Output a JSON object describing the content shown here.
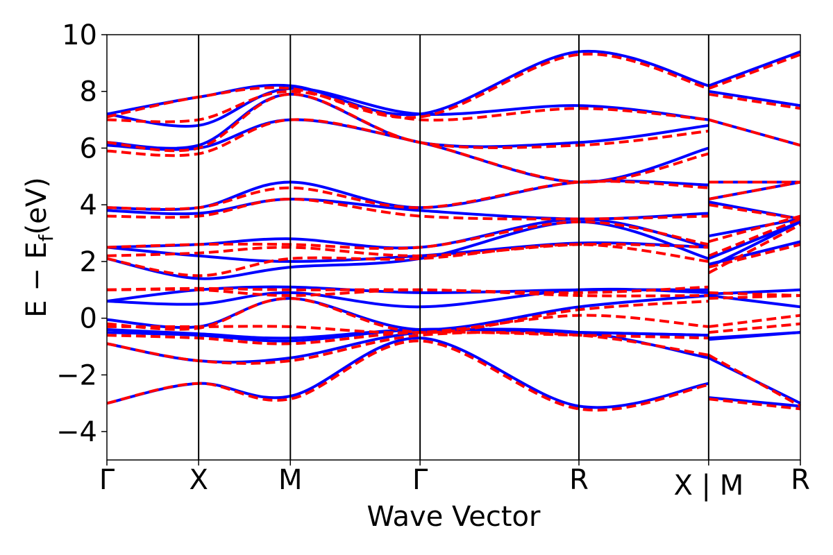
{
  "chart_data": {
    "type": "line",
    "title": "",
    "xlabel": "Wave Vector",
    "ylabel": "E − E",
    "ylabel_subscript": "f",
    "ylabel_unit": "(eV)",
    "ylim": [
      -5,
      10
    ],
    "yticks": [
      {
        "value": 10,
        "label": "10"
      },
      {
        "value": 8,
        "label": "8"
      },
      {
        "value": 6,
        "label": "6"
      },
      {
        "value": 4,
        "label": "4"
      },
      {
        "value": 2,
        "label": "2"
      },
      {
        "value": 0,
        "label": "0"
      },
      {
        "value": -2,
        "label": "−2"
      },
      {
        "value": -4,
        "label": "−4"
      }
    ],
    "kpoints": [
      {
        "label": "Γ",
        "x": 0
      },
      {
        "label": "X",
        "x": 1
      },
      {
        "label": "M",
        "x": 2
      },
      {
        "label": "Γ",
        "x": 3.414
      },
      {
        "label": "R",
        "x": 5.146
      },
      {
        "label": "X | M",
        "x": 6.56
      },
      {
        "label": "R",
        "x": 7.56
      }
    ],
    "grid": false,
    "legend": "none",
    "series": [
      {
        "style": "solid",
        "color": "#0000ff",
        "bands": [
          [
            [
              0,
              -3.0
            ],
            [
              1,
              -2.3
            ],
            [
              2,
              -2.75
            ],
            [
              3.414,
              -0.7
            ],
            [
              5.146,
              -3.1
            ],
            [
              6.56,
              -2.3
            ],
            [
              6.56,
              -2.8
            ],
            [
              7.56,
              -3.1
            ]
          ],
          [
            [
              0,
              -0.9
            ],
            [
              1,
              -1.5
            ],
            [
              2,
              -1.4
            ],
            [
              3.414,
              -0.5
            ],
            [
              5.146,
              -0.5
            ],
            [
              6.56,
              -1.4
            ],
            [
              6.56,
              -1.4
            ],
            [
              7.56,
              -3.0
            ]
          ],
          [
            [
              0,
              -0.5
            ],
            [
              1,
              -0.6
            ],
            [
              2,
              -0.8
            ],
            [
              3.414,
              -0.4
            ],
            [
              5.146,
              -0.5
            ],
            [
              6.56,
              -0.6
            ],
            [
              6.56,
              -0.7
            ],
            [
              7.56,
              -0.5
            ]
          ],
          [
            [
              0,
              -0.4
            ],
            [
              1,
              -0.55
            ],
            [
              2,
              -0.7
            ],
            [
              3.414,
              -0.4
            ],
            [
              5.146,
              -0.5
            ],
            [
              6.56,
              -0.6
            ],
            [
              6.56,
              -0.75
            ],
            [
              7.56,
              -0.5
            ]
          ],
          [
            [
              0,
              -0.05
            ],
            [
              1,
              -0.3
            ],
            [
              2,
              0.7
            ],
            [
              3.414,
              -0.4
            ],
            [
              5.146,
              0.4
            ],
            [
              6.56,
              0.8
            ],
            [
              6.56,
              0.8
            ],
            [
              7.56,
              0.4
            ]
          ],
          [
            [
              0,
              0.6
            ],
            [
              1,
              0.5
            ],
            [
              2,
              0.9
            ],
            [
              3.414,
              0.4
            ],
            [
              5.146,
              1.0
            ],
            [
              6.56,
              0.9
            ],
            [
              6.56,
              0.85
            ],
            [
              7.56,
              1.0
            ]
          ],
          [
            [
              0,
              0.6
            ],
            [
              1,
              1.0
            ],
            [
              2,
              1.1
            ],
            [
              3.414,
              0.9
            ],
            [
              5.146,
              1.0
            ],
            [
              6.56,
              1.0
            ],
            [
              6.56,
              1.8
            ],
            [
              7.56,
              3.4
            ]
          ],
          [
            [
              0,
              2.1
            ],
            [
              1,
              1.4
            ],
            [
              2,
              1.8
            ],
            [
              3.414,
              2.1
            ],
            [
              5.146,
              3.4
            ],
            [
              6.56,
              2.1
            ],
            [
              6.56,
              1.9
            ],
            [
              7.56,
              2.7
            ]
          ],
          [
            [
              0,
              2.5
            ],
            [
              1,
              2.2
            ],
            [
              2,
              2.0
            ],
            [
              3.414,
              2.2
            ],
            [
              5.146,
              2.65
            ],
            [
              6.56,
              2.5
            ],
            [
              6.56,
              2.1
            ],
            [
              7.56,
              3.4
            ]
          ],
          [
            [
              0,
              2.5
            ],
            [
              1,
              2.6
            ],
            [
              2,
              2.8
            ],
            [
              3.414,
              2.5
            ],
            [
              5.146,
              3.5
            ],
            [
              6.56,
              2.5
            ],
            [
              6.56,
              2.9
            ],
            [
              7.56,
              3.5
            ]
          ],
          [
            [
              0,
              3.8
            ],
            [
              1,
              3.7
            ],
            [
              2,
              4.2
            ],
            [
              3.414,
              3.8
            ],
            [
              5.146,
              3.5
            ],
            [
              6.56,
              3.7
            ],
            [
              6.56,
              4.1
            ],
            [
              7.56,
              3.5
            ]
          ],
          [
            [
              0,
              3.9
            ],
            [
              1,
              3.9
            ],
            [
              2,
              4.8
            ],
            [
              3.414,
              3.9
            ],
            [
              5.146,
              4.8
            ],
            [
              6.56,
              4.7
            ],
            [
              6.56,
              4.2
            ],
            [
              7.56,
              4.8
            ]
          ],
          [
            [
              0,
              6.1
            ],
            [
              1,
              6.0
            ],
            [
              2,
              7.0
            ],
            [
              3.414,
              6.2
            ],
            [
              5.146,
              4.8
            ],
            [
              6.56,
              6.0
            ],
            [
              6.56,
              4.8
            ],
            [
              7.56,
              4.8
            ]
          ],
          [
            [
              0,
              6.2
            ],
            [
              1,
              6.1
            ],
            [
              2,
              7.9
            ],
            [
              3.414,
              6.2
            ],
            [
              5.146,
              6.2
            ],
            [
              6.56,
              6.8
            ],
            [
              6.56,
              7.0
            ],
            [
              7.56,
              6.1
            ]
          ],
          [
            [
              0,
              7.2
            ],
            [
              1,
              6.8
            ],
            [
              2,
              8.1
            ],
            [
              3.414,
              7.2
            ],
            [
              5.146,
              7.5
            ],
            [
              6.56,
              7.0
            ],
            [
              6.56,
              8.0
            ],
            [
              7.56,
              7.5
            ]
          ],
          [
            [
              0,
              7.2
            ],
            [
              1,
              7.8
            ],
            [
              2,
              8.2
            ],
            [
              3.414,
              7.2
            ],
            [
              5.146,
              9.4
            ],
            [
              6.56,
              8.2
            ],
            [
              6.56,
              8.2
            ],
            [
              7.56,
              9.4
            ]
          ]
        ]
      },
      {
        "style": "dashed",
        "color": "#ff0000",
        "bands": [
          [
            [
              0,
              -3.0
            ],
            [
              1,
              -2.3
            ],
            [
              2,
              -2.85
            ],
            [
              3.414,
              -0.8
            ],
            [
              5.146,
              -3.2
            ],
            [
              6.56,
              -2.35
            ],
            [
              6.56,
              -2.85
            ],
            [
              7.56,
              -3.2
            ]
          ],
          [
            [
              0,
              -0.9
            ],
            [
              1,
              -1.5
            ],
            [
              2,
              -1.5
            ],
            [
              3.414,
              -0.6
            ],
            [
              5.146,
              -0.6
            ],
            [
              6.56,
              -1.3
            ],
            [
              6.56,
              -1.3
            ],
            [
              7.56,
              -3.1
            ]
          ],
          [
            [
              0,
              -0.6
            ],
            [
              1,
              -0.7
            ],
            [
              2,
              -0.9
            ],
            [
              3.414,
              -0.5
            ],
            [
              5.146,
              -0.6
            ],
            [
              6.56,
              -0.7
            ],
            [
              6.56,
              -0.5
            ],
            [
              7.56,
              -0.2
            ]
          ],
          [
            [
              0,
              -0.3
            ],
            [
              1,
              -0.3
            ],
            [
              2,
              -0.3
            ],
            [
              3.414,
              -0.5
            ],
            [
              5.146,
              0.1
            ],
            [
              6.56,
              -0.3
            ],
            [
              6.56,
              -0.3
            ],
            [
              7.56,
              0.1
            ]
          ],
          [
            [
              0,
              -0.2
            ],
            [
              1,
              -0.35
            ],
            [
              2,
              0.7
            ],
            [
              3.414,
              -0.5
            ],
            [
              5.146,
              0.3
            ],
            [
              6.56,
              0.6
            ],
            [
              6.56,
              0.7
            ],
            [
              7.56,
              0.8
            ]
          ],
          [
            [
              0,
              1.0
            ],
            [
              1,
              1.0
            ],
            [
              2,
              0.8
            ],
            [
              3.414,
              1.0
            ],
            [
              5.146,
              0.8
            ],
            [
              6.56,
              0.8
            ],
            [
              6.56,
              0.9
            ],
            [
              7.56,
              0.8
            ]
          ],
          [
            [
              0,
              1.0
            ],
            [
              1,
              1.05
            ],
            [
              2,
              1.0
            ],
            [
              3.414,
              1.0
            ],
            [
              5.146,
              0.9
            ],
            [
              6.56,
              1.1
            ],
            [
              6.56,
              1.6
            ],
            [
              7.56,
              3.3
            ]
          ],
          [
            [
              0,
              2.1
            ],
            [
              1,
              1.5
            ],
            [
              2,
              2.1
            ],
            [
              3.414,
              2.1
            ],
            [
              5.146,
              2.6
            ],
            [
              6.56,
              2.0
            ],
            [
              6.56,
              1.8
            ],
            [
              7.56,
              2.6
            ]
          ],
          [
            [
              0,
              2.2
            ],
            [
              1,
              2.3
            ],
            [
              2,
              2.5
            ],
            [
              3.414,
              2.2
            ],
            [
              5.146,
              2.6
            ],
            [
              6.56,
              2.5
            ],
            [
              6.56,
              2.2
            ],
            [
              7.56,
              3.5
            ]
          ],
          [
            [
              0,
              2.5
            ],
            [
              1,
              2.6
            ],
            [
              2,
              2.6
            ],
            [
              3.414,
              2.5
            ],
            [
              5.146,
              3.4
            ],
            [
              6.56,
              2.6
            ],
            [
              6.56,
              2.7
            ],
            [
              7.56,
              3.6
            ]
          ],
          [
            [
              0,
              3.6
            ],
            [
              1,
              3.6
            ],
            [
              2,
              4.2
            ],
            [
              3.414,
              3.6
            ],
            [
              5.146,
              3.5
            ],
            [
              6.56,
              3.6
            ],
            [
              6.56,
              4.0
            ],
            [
              7.56,
              3.5
            ]
          ],
          [
            [
              0,
              3.9
            ],
            [
              1,
              3.9
            ],
            [
              2,
              4.6
            ],
            [
              3.414,
              3.9
            ],
            [
              5.146,
              4.8
            ],
            [
              6.56,
              4.6
            ],
            [
              6.56,
              4.2
            ],
            [
              7.56,
              4.8
            ]
          ],
          [
            [
              0,
              5.9
            ],
            [
              1,
              5.8
            ],
            [
              2,
              7.0
            ],
            [
              3.414,
              6.2
            ],
            [
              5.146,
              4.8
            ],
            [
              6.56,
              5.8
            ],
            [
              6.56,
              4.8
            ],
            [
              7.56,
              4.8
            ]
          ],
          [
            [
              0,
              6.2
            ],
            [
              1,
              6.0
            ],
            [
              2,
              7.9
            ],
            [
              3.414,
              6.2
            ],
            [
              5.146,
              6.1
            ],
            [
              6.56,
              6.6
            ],
            [
              6.56,
              7.0
            ],
            [
              7.56,
              6.1
            ]
          ],
          [
            [
              0,
              7.0
            ],
            [
              1,
              7.0
            ],
            [
              2,
              8.0
            ],
            [
              3.414,
              7.0
            ],
            [
              5.146,
              7.4
            ],
            [
              6.56,
              7.0
            ],
            [
              6.56,
              7.9
            ],
            [
              7.56,
              7.4
            ]
          ],
          [
            [
              0,
              7.1
            ],
            [
              1,
              7.8
            ],
            [
              2,
              8.1
            ],
            [
              3.414,
              7.1
            ],
            [
              5.146,
              9.3
            ],
            [
              6.56,
              8.1
            ],
            [
              6.56,
              8.1
            ],
            [
              7.56,
              9.3
            ]
          ]
        ]
      }
    ]
  }
}
